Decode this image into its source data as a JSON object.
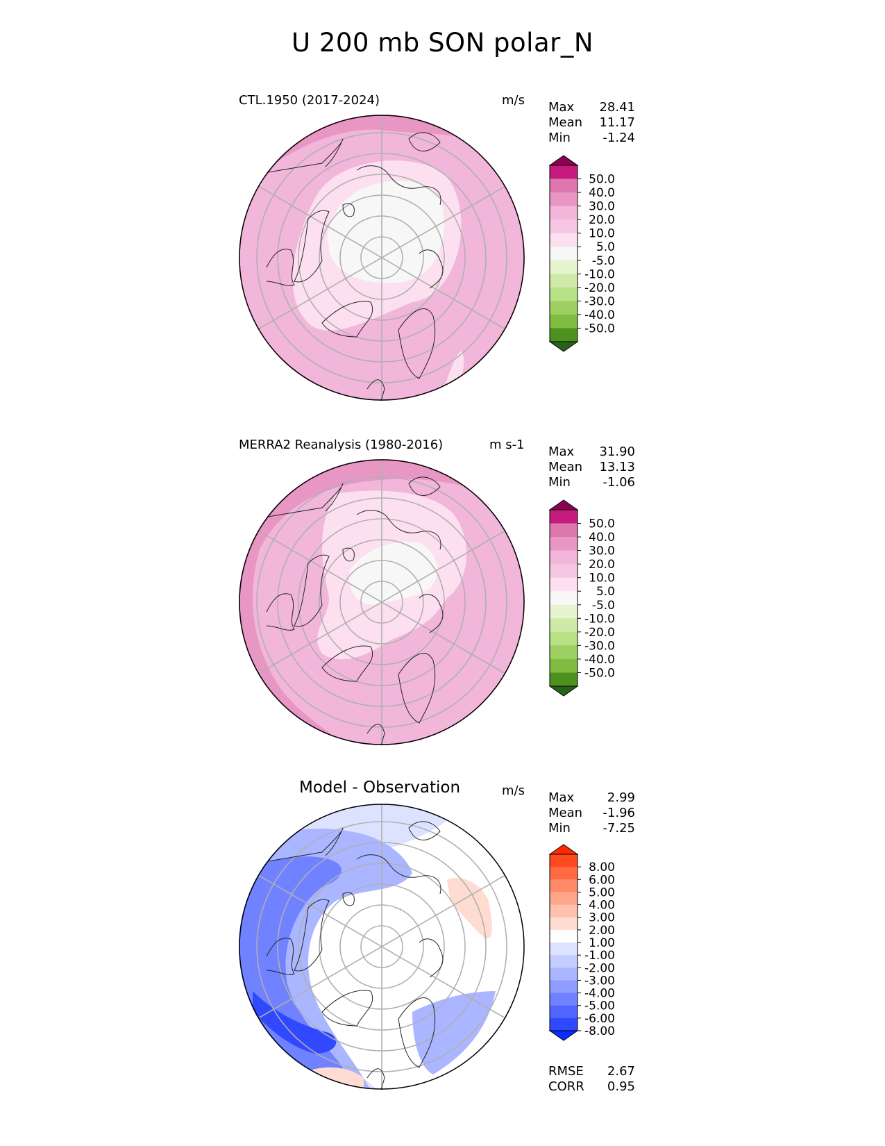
{
  "title": "U 200 mb SON polar_N",
  "panels": [
    {
      "id": "model",
      "label": "CTL.1950 (2017-2024)",
      "units": "m/s",
      "stats": [
        {
          "name": "Max",
          "value": "28.41"
        },
        {
          "name": "Mean",
          "value": "11.17"
        },
        {
          "name": "Min",
          "value": "-1.24"
        }
      ],
      "colorbar": {
        "colors": [
          "#276419",
          "#4d9221",
          "#7fbc41",
          "#b8e186",
          "#e6f5d0",
          "#f7f7f7",
          "#fde0ef",
          "#f1b6da",
          "#de77ae",
          "#c51b7d",
          "#8e0152"
        ],
        "extra_colors": [
          "#4d9221",
          "#7fbc41",
          "#9dcf62",
          "#b8e186",
          "#cfeaa8",
          "#e6f5d0",
          "#f7f7f7",
          "#fde0ef",
          "#f6c6e2",
          "#f1b6da",
          "#e896c4",
          "#de77ae",
          "#c51b7d",
          "#8e0152"
        ],
        "ticks": [
          "50.0",
          "40.0",
          "30.0",
          "20.0",
          "10.0",
          "5.0",
          "-5.0",
          "-10.0",
          "-20.0",
          "-30.0",
          "-40.0",
          "-50.0"
        ]
      }
    },
    {
      "id": "obs",
      "label": "MERRA2 Reanalysis (1980-2016)",
      "units": "m s-1",
      "stats": [
        {
          "name": "Max",
          "value": "31.90"
        },
        {
          "name": "Mean",
          "value": "13.13"
        },
        {
          "name": "Min",
          "value": "-1.06"
        }
      ],
      "colorbar": {
        "ticks": [
          "50.0",
          "40.0",
          "30.0",
          "20.0",
          "10.0",
          "5.0",
          "-5.0",
          "-10.0",
          "-20.0",
          "-30.0",
          "-40.0",
          "-50.0"
        ]
      }
    },
    {
      "id": "diff",
      "label": "Model - Observation",
      "units": "m/s",
      "stats": [
        {
          "name": "Max",
          "value": "2.99"
        },
        {
          "name": "Mean",
          "value": "-1.96"
        },
        {
          "name": "Min",
          "value": "-7.25"
        }
      ],
      "extra_stats": [
        {
          "name": "RMSE",
          "value": "2.67"
        },
        {
          "name": "CORR",
          "value": "0.95"
        }
      ],
      "colorbar": {
        "ticks": [
          "8.00",
          "6.00",
          "5.00",
          "4.00",
          "3.00",
          "2.00",
          "1.00",
          "-1.00",
          "-2.00",
          "-3.00",
          "-4.00",
          "-5.00",
          "-6.00",
          "-8.00"
        ]
      }
    }
  ],
  "colors": {
    "pos_scale_top_to_bottom": [
      "#8e0152",
      "#c51b7d",
      "#de77ae",
      "#e896c4",
      "#f1b6da",
      "#f6c6e2",
      "#fde0ef",
      "#f7f7f7",
      "#e6f5d0",
      "#cfeaa8",
      "#b8e186",
      "#9dcf62",
      "#7fbc41",
      "#4d9221",
      "#276419"
    ],
    "diff_scale_top_to_bottom": [
      "#ff2a00",
      "#ff4a1f",
      "#ff6a45",
      "#ff8a6a",
      "#ffa58c",
      "#ffc0ac",
      "#ffdcd2",
      "#ffffff",
      "#dde3ff",
      "#c4cdff",
      "#aab6ff",
      "#8e9cff",
      "#7082ff",
      "#5066ff",
      "#3049ff",
      "#0a2cff"
    ]
  }
}
